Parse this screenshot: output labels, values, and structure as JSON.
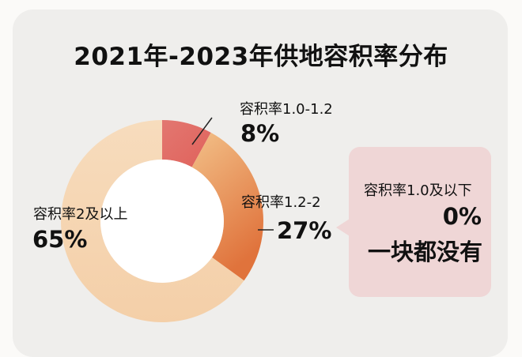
{
  "title": "2021年-2023年供地容积率分布",
  "chart_data": {
    "type": "pie",
    "variant": "donut",
    "title": "2021年-2023年供地容积率分布",
    "categories": [
      "容积率1.0-1.2",
      "容积率1.2-2",
      "容积率2及以上"
    ],
    "values": [
      8,
      27,
      65
    ],
    "value_labels": [
      "8%",
      "27%",
      "65%"
    ],
    "colors": [
      "#e0625b",
      "#e08a4a",
      "#f6d4b0"
    ],
    "annotation": {
      "label": "容积率1.0及以下",
      "value": "0%",
      "note": "一块都没有"
    }
  },
  "colors": {
    "card_bg": "#efeeec",
    "callout_bg": "#efd6d6",
    "text": "#111111"
  }
}
